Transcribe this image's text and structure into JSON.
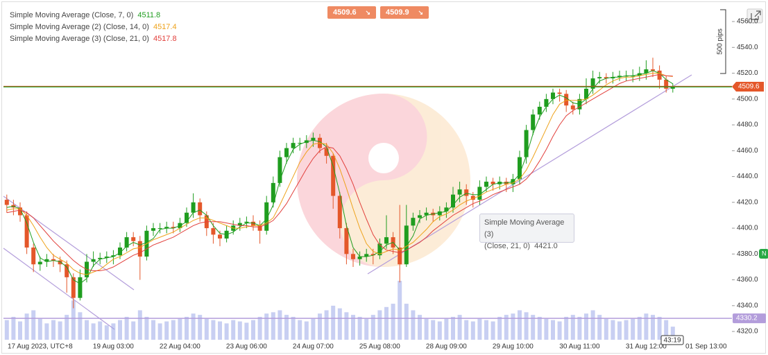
{
  "chart_data": {
    "type": "candlestick",
    "categories": [
      null,
      null,
      null,
      null,
      null,
      "17 Aug 2023, UTC+8",
      null,
      null,
      null,
      null,
      null,
      null,
      null,
      null,
      null,
      null,
      "19 Aug 03:00",
      null,
      null,
      null,
      null,
      null,
      null,
      null,
      null,
      null,
      "22 Aug 04:00",
      null,
      null,
      null,
      null,
      null,
      null,
      null,
      null,
      null,
      "23 Aug 06:00",
      null,
      null,
      null,
      null,
      null,
      null,
      null,
      null,
      null,
      "24 Aug 07:00",
      null,
      null,
      null,
      null,
      null,
      null,
      null,
      null,
      null,
      "25 Aug 08:00",
      null,
      null,
      null,
      null,
      null,
      null,
      null,
      null,
      null,
      "28 Aug 09:00",
      null,
      null,
      null,
      null,
      null,
      null,
      null,
      null,
      null,
      "29 Aug 10:00",
      null,
      null,
      null,
      null,
      null,
      null,
      null,
      null,
      null,
      "30 Aug 11:00",
      null,
      null,
      null,
      null,
      null,
      null,
      null,
      null,
      null,
      "31 Aug 12:00",
      null,
      null,
      null,
      null,
      null,
      null,
      null,
      null,
      "01 Sep 13:00",
      null
    ],
    "open": [
      4422,
      4418,
      4416,
      4410,
      4385,
      4372,
      4374,
      4376,
      4375,
      4372,
      4362,
      4346,
      4362,
      4374,
      4376,
      4377,
      4378,
      4379,
      4385,
      4393,
      4390,
      4378,
      4398,
      4400,
      4400,
      4401,
      4400,
      4404,
      4412,
      4420,
      4410,
      4400,
      4395,
      4392,
      4398,
      4402,
      4404,
      4405,
      4402,
      4398,
      4420,
      4435,
      4455,
      4462,
      4466,
      4466,
      4468,
      4470,
      4462,
      4456,
      4425,
      4400,
      4380,
      4376,
      4378,
      4380,
      4379,
      4388,
      4393,
      4385,
      4372,
      4402,
      4408,
      4410,
      4412,
      4410,
      4413,
      4416,
      4426,
      4430,
      4425,
      4422,
      4432,
      4436,
      4434,
      4436,
      4434,
      4438,
      4455,
      4476,
      4488,
      4494,
      4500,
      4505,
      4504,
      4495,
      4492,
      4500,
      4508,
      4516,
      4517,
      4516,
      4517,
      4518,
      4518,
      4518,
      4520,
      4523,
      4522,
      4515,
      4508,
      null,
      null,
      null,
      null,
      null,
      null
    ],
    "high": [
      4426,
      4422,
      4420,
      4413,
      4388,
      4378,
      4380,
      4380,
      4378,
      4375,
      4365,
      4368,
      4380,
      4382,
      4381,
      4382,
      4383,
      4389,
      4397,
      4397,
      4394,
      4402,
      4404,
      4404,
      4405,
      4405,
      4408,
      4416,
      4427,
      4423,
      4413,
      4404,
      4398,
      4402,
      4406,
      4408,
      4409,
      4410,
      4406,
      4425,
      4440,
      4460,
      4466,
      4470,
      4470,
      4472,
      4474,
      4473,
      4466,
      4458,
      4428,
      4404,
      4384,
      4382,
      4384,
      4384,
      4392,
      4410,
      4397,
      4418,
      4418,
      4412,
      4414,
      4416,
      4415,
      4417,
      4420,
      4432,
      4436,
      4434,
      4428,
      4437,
      4440,
      4439,
      4440,
      4439,
      4442,
      4460,
      4480,
      4492,
      4498,
      4504,
      4508,
      4508,
      4507,
      4498,
      4504,
      4516,
      4522,
      4521,
      4520,
      4521,
      4522,
      4522,
      4523,
      4525,
      4530,
      4532,
      4526,
      4518,
      4512,
      null,
      null,
      null,
      null,
      null,
      null
    ],
    "low": [
      4412,
      4410,
      4405,
      4380,
      4366,
      4367,
      4370,
      4370,
      4366,
      4350,
      4338,
      4344,
      4358,
      4370,
      4372,
      4373,
      4372,
      4376,
      4382,
      4386,
      4360,
      4375,
      4394,
      4396,
      4396,
      4396,
      4397,
      4401,
      4408,
      4405,
      4394,
      4388,
      4386,
      4389,
      4395,
      4398,
      4400,
      4398,
      4388,
      4395,
      4416,
      4432,
      4450,
      4458,
      4460,
      4462,
      4463,
      4458,
      4450,
      4415,
      4392,
      4372,
      4370,
      4371,
      4374,
      4372,
      4376,
      4384,
      4380,
      4358,
      4370,
      4398,
      4404,
      4406,
      4405,
      4406,
      4408,
      4412,
      4420,
      4418,
      4416,
      4418,
      4428,
      4429,
      4430,
      4428,
      4428,
      4434,
      4450,
      4472,
      4484,
      4490,
      4496,
      4498,
      4490,
      4488,
      4488,
      4496,
      4504,
      4512,
      4512,
      4512,
      4514,
      4514,
      4513,
      4514,
      4515,
      4517,
      4508,
      4505,
      4505,
      null,
      null,
      null,
      null,
      null,
      null
    ],
    "close": [
      4418,
      4416,
      4410,
      4385,
      4372,
      4374,
      4376,
      4375,
      4372,
      4362,
      4346,
      4362,
      4374,
      4376,
      4377,
      4378,
      4379,
      4385,
      4393,
      4390,
      4378,
      4398,
      4400,
      4400,
      4401,
      4400,
      4404,
      4412,
      4420,
      4410,
      4400,
      4395,
      4392,
      4398,
      4402,
      4404,
      4405,
      4402,
      4398,
      4420,
      4435,
      4455,
      4462,
      4466,
      4466,
      4468,
      4470,
      4462,
      4456,
      4425,
      4400,
      4380,
      4376,
      4378,
      4380,
      4379,
      4388,
      4393,
      4385,
      4372,
      4402,
      4408,
      4410,
      4412,
      4410,
      4413,
      4416,
      4426,
      4430,
      4425,
      4422,
      4432,
      4436,
      4434,
      4436,
      4434,
      4438,
      4455,
      4476,
      4488,
      4494,
      4500,
      4505,
      4504,
      4495,
      4492,
      4500,
      4508,
      4516,
      4517,
      4516,
      4517,
      4518,
      4518,
      4518,
      4520,
      4523,
      4522,
      4515,
      4508,
      4509.6,
      null,
      null,
      null,
      null,
      null,
      null
    ],
    "volume": [
      30,
      35,
      28,
      40,
      45,
      32,
      25,
      30,
      28,
      38,
      60,
      42,
      30,
      25,
      28,
      22,
      25,
      30,
      35,
      28,
      45,
      35,
      30,
      25,
      28,
      30,
      32,
      35,
      40,
      38,
      32,
      30,
      28,
      25,
      30,
      28,
      26,
      30,
      35,
      40,
      42,
      45,
      38,
      35,
      30,
      28,
      32,
      40,
      45,
      52,
      48,
      42,
      38,
      35,
      32,
      38,
      45,
      50,
      55,
      90,
      55,
      45,
      38,
      32,
      30,
      28,
      32,
      35,
      38,
      30,
      28,
      32,
      30,
      28,
      35,
      38,
      40,
      45,
      42,
      38,
      35,
      32,
      30,
      28,
      35,
      38,
      35,
      40,
      45,
      38,
      32,
      30,
      28,
      30,
      32,
      35,
      40,
      38,
      35,
      30,
      20,
      null,
      null,
      null,
      null,
      null,
      null
    ],
    "series": [
      {
        "name": "Simple Moving Average (Close, 7, 0)",
        "color": "#1f9d1f",
        "values": [
          4416,
          4417,
          4415,
          4404,
          4389,
          4377,
          4374,
          4375,
          4374,
          4370,
          4360,
          4357,
          4361,
          4371,
          4376,
          4377,
          4378,
          4381,
          4386,
          4389,
          4387,
          4389,
          4392,
          4399,
          4400,
          4400,
          4402,
          4405,
          4412,
          4414,
          4410,
          4402,
          4396,
          4395,
          4397,
          4401,
          4404,
          4404,
          4402,
          4407,
          4418,
          4437,
          4451,
          4461,
          4465,
          4467,
          4468,
          4467,
          4463,
          4448,
          4427,
          4402,
          4385,
          4378,
          4378,
          4379,
          4382,
          4387,
          4389,
          4383,
          4386,
          4394,
          4407,
          4410,
          4411,
          4412,
          4413,
          4418,
          4424,
          4427,
          4426,
          4426,
          4430,
          4434,
          4435,
          4435,
          4436,
          4442,
          4456,
          4473,
          4486,
          4494,
          4500,
          4503,
          4501,
          4497,
          4496,
          4500,
          4508,
          4514,
          4516,
          4517,
          4517,
          4518,
          4518,
          4519,
          4520,
          4522,
          4520,
          4515,
          4511.8,
          null,
          null,
          null,
          null,
          null,
          null
        ]
      },
      {
        "name": "Simple Moving Average (2) (Close, 14, 0)",
        "color": "#eea21a",
        "values": [
          4414,
          4415,
          4415,
          4410,
          4402,
          4393,
          4385,
          4379,
          4376,
          4373,
          4368,
          4365,
          4364,
          4366,
          4368,
          4372,
          4376,
          4378,
          4381,
          4384,
          4385,
          4388,
          4391,
          4393,
          4395,
          4397,
          4400,
          4403,
          4406,
          4408,
          4408,
          4406,
          4404,
          4402,
          4400,
          4400,
          4401,
          4402,
          4402,
          4404,
          4408,
          4418,
          4429,
          4440,
          4451,
          4459,
          4465,
          4466,
          4465,
          4458,
          4446,
          4431,
          4415,
          4400,
          4388,
          4382,
          4380,
          4382,
          4384,
          4383,
          4386,
          4389,
          4394,
          4399,
          4405,
          4409,
          4411,
          4414,
          4418,
          4421,
          4423,
          4425,
          4428,
          4430,
          4432,
          4434,
          4435,
          4438,
          4445,
          4455,
          4466,
          4477,
          4488,
          4496,
          4499,
          4499,
          4499,
          4500,
          4503,
          4507,
          4511,
          4514,
          4516,
          4517,
          4517,
          4518,
          4519,
          4520,
          4520,
          4518,
          4517.4,
          null,
          null,
          null,
          null,
          null,
          null
        ]
      },
      {
        "name": "Simple Moving Average (3) (Close, 21, 0)",
        "color": "#e2403c",
        "values": [
          4412,
          4413,
          4414,
          4412,
          4408,
          4402,
          4396,
          4390,
          4385,
          4380,
          4375,
          4371,
          4368,
          4367,
          4367,
          4368,
          4370,
          4373,
          4376,
          4379,
          4381,
          4384,
          4387,
          4389,
          4391,
          4393,
          4396,
          4399,
          4402,
          4404,
          4405,
          4405,
          4405,
          4404,
          4403,
          4402,
          4402,
          4401,
          4401,
          4403,
          4406,
          4412,
          4419,
          4428,
          4437,
          4446,
          4454,
          4460,
          4463,
          4462,
          4456,
          4446,
          4434,
          4420,
          4407,
          4395,
          4387,
          4383,
          4382,
          4381,
          4383,
          4386,
          4389,
          4393,
          4398,
          4402,
          4406,
          4410,
          4413,
          4416,
          4419,
          4421,
          4423,
          4426,
          4428,
          4430,
          4432,
          4434,
          4438,
          4444,
          4452,
          4461,
          4471,
          4480,
          4487,
          4491,
          4494,
          4497,
          4500,
          4503,
          4506,
          4509,
          4512,
          4514,
          4515,
          4516,
          4517,
          4518,
          4519,
          4518,
          4517.8,
          null,
          null,
          null,
          null,
          null,
          null
        ]
      }
    ],
    "up_color": "#1f9d1f",
    "down_color": "#e4572a",
    "ylim": [
      4313.6,
      4574
    ],
    "yticks": [
      {
        "value": 4320,
        "label": "4320.0"
      },
      {
        "value": 4340,
        "label": "4340.0"
      },
      {
        "value": 4360,
        "label": "4360.0"
      },
      {
        "value": 4380,
        "label": "4380.0"
      },
      {
        "value": 4400,
        "label": "4400.0"
      },
      {
        "value": 4420,
        "label": "4420.0"
      },
      {
        "value": 4440,
        "label": "4440.0"
      },
      {
        "value": 4460,
        "label": "4460.0"
      },
      {
        "value": 4480,
        "label": "4480.0"
      },
      {
        "value": 4500,
        "label": "4500.0"
      },
      {
        "value": 4520,
        "label": "4520.0"
      },
      {
        "value": 4540,
        "label": "4540.0"
      },
      {
        "value": 4560,
        "label": "4560.0"
      }
    ],
    "grid": false,
    "bid": 4509.6,
    "ask": 4509.9,
    "hline": {
      "value": 4330.2,
      "color": "#b39ddb"
    },
    "tooltip": {
      "title": "Simple Moving Average (3)",
      "params": "(Close, 21, 0)",
      "values": [
        4421
      ],
      "value_labels": [
        "4421.0"
      ]
    },
    "ruler_label": "500 pips",
    "countdown": "43:19",
    "side_tag": "N"
  }
}
